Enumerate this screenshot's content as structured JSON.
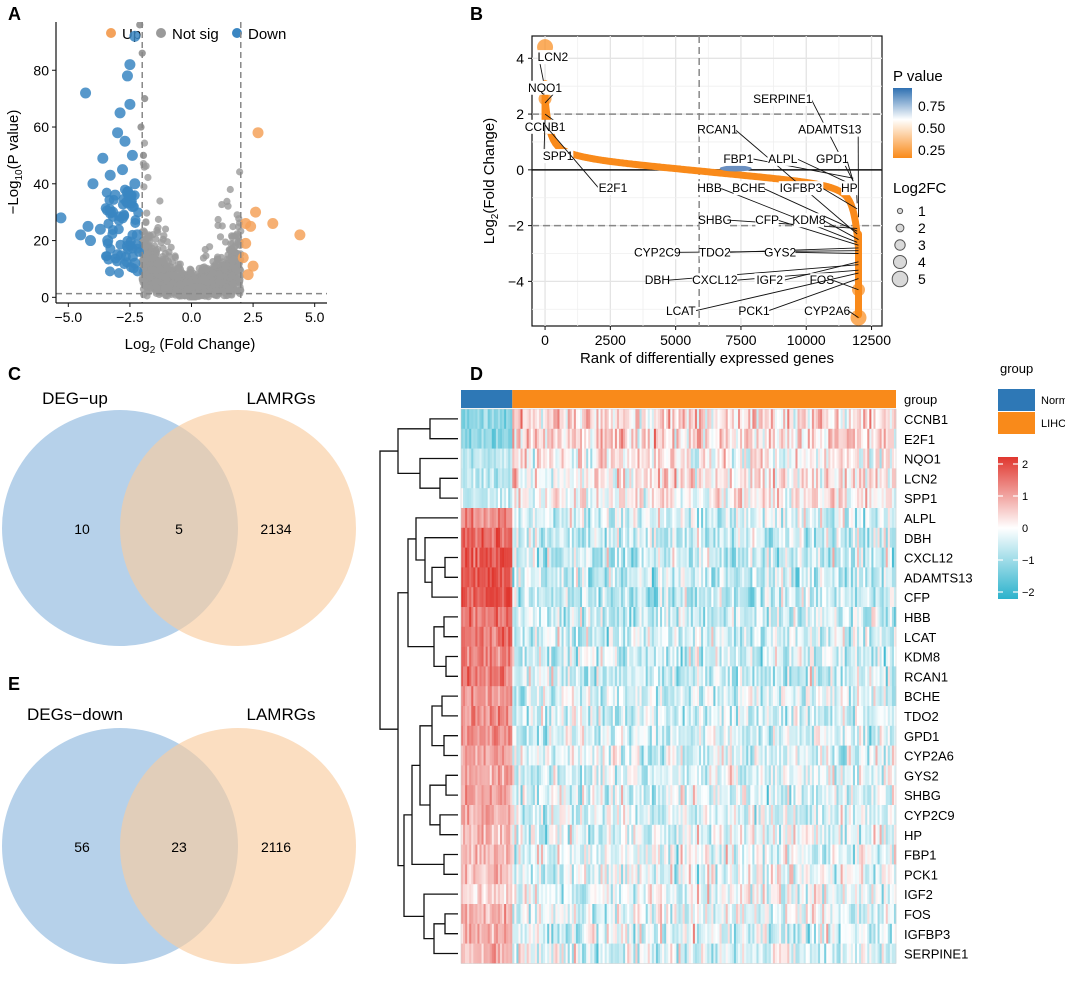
{
  "panels": {
    "A": "A",
    "B": "B",
    "C": "C",
    "D": "D",
    "E": "E"
  },
  "colors": {
    "up": "#f4a25b",
    "notsig": "#9a9a9a",
    "down": "#3a86c2",
    "rank_line": "#f98a1a",
    "venn_left": "#a9c9e6",
    "venn_right": "#f9cc9f",
    "normal": "#2e78b6",
    "lihc": "#f98a1a",
    "heat_high": "#e0372f",
    "heat_mid": "#ffffff",
    "heat_low": "#2bb2cc"
  },
  "chart_data": [
    {
      "panel": "A",
      "type": "scatter",
      "title": "",
      "xlabel": "Log2 (Fold Change)",
      "ylabel": "-Log10 (P value)",
      "xlim": [
        -5.5,
        5.5
      ],
      "ylim": [
        -2,
        97
      ],
      "xticks": [
        "-5.0",
        "-2.5",
        "0.0",
        "2.5",
        "5.0"
      ],
      "yticks": [
        "0",
        "20",
        "40",
        "60",
        "80"
      ],
      "thresholds": {
        "fc": [
          -2,
          2
        ],
        "p": 1.3
      },
      "legend": [
        "Up",
        "Not sig",
        "Down"
      ],
      "series": [
        {
          "name": "Up",
          "points": [
            [
              2.7,
              58
            ],
            [
              4.4,
              22
            ],
            [
              3.3,
              26
            ],
            [
              2.6,
              30
            ],
            [
              2.3,
              8
            ],
            [
              2.5,
              11
            ],
            [
              2.2,
              19
            ],
            [
              2.4,
              25
            ],
            [
              2.1,
              14
            ],
            [
              2.2,
              26
            ]
          ]
        },
        {
          "name": "Down",
          "points": [
            [
              -2.3,
              92
            ],
            [
              -2.5,
              82
            ],
            [
              -2.6,
              78
            ],
            [
              -4.3,
              72
            ],
            [
              -2.9,
              65
            ],
            [
              -2.5,
              68
            ],
            [
              -3.0,
              58
            ],
            [
              -2.7,
              55
            ],
            [
              -2.4,
              50
            ],
            [
              -3.6,
              49
            ],
            [
              -2.8,
              45
            ],
            [
              -2.3,
              40
            ],
            [
              -3.3,
              43
            ],
            [
              -4.0,
              40
            ],
            [
              -2.6,
              37
            ],
            [
              -3.1,
              36
            ],
            [
              -5.3,
              28
            ],
            [
              -4.2,
              25
            ],
            [
              -3.7,
              24
            ],
            [
              -4.5,
              22
            ],
            [
              -3.2,
              30
            ],
            [
              -2.8,
              28
            ],
            [
              -2.4,
              32
            ],
            [
              -3.4,
              20
            ],
            [
              -2.6,
              18
            ],
            [
              -2.2,
              22
            ],
            [
              -3.0,
              15
            ],
            [
              -4.1,
              20
            ],
            [
              -2.3,
              12
            ]
          ]
        }
      ],
      "notsig_cloud": {
        "count": 1200,
        "x_range": [
          -2.0,
          2.0
        ],
        "y_max": 96
      }
    },
    {
      "panel": "B",
      "type": "line",
      "xlabel": "Rank of differentially expressed genes",
      "ylabel": "Log2 (Fold Change)",
      "xlim": [
        -500,
        12900
      ],
      "ylim": [
        -5.6,
        4.8
      ],
      "xticks": [
        0,
        2500,
        5000,
        7500,
        10000,
        12500
      ],
      "yticks": [
        -4,
        -2,
        0,
        2,
        4
      ],
      "hlines": [
        2,
        -2
      ],
      "vline": 5900,
      "colorbar": {
        "title": "P value",
        "ticks": [
          "0.75",
          "0.50",
          "0.25"
        ]
      },
      "size_legend": {
        "title": "Log2FC",
        "items": [
          "1",
          "2",
          "3",
          "4",
          "5"
        ]
      },
      "highlight_points": [
        [
          0,
          4.4
        ],
        [
          0,
          2.9
        ],
        [
          0,
          2.55
        ],
        [
          12000,
          -4.3
        ],
        [
          12000,
          -5.3
        ]
      ],
      "labels": [
        {
          "text": "LCN2",
          "x": 300,
          "y": 3.9,
          "px": 0,
          "py": 2.9
        },
        {
          "text": "NQO1",
          "x": 0,
          "y": 2.8,
          "px": 0,
          "py": 2.4
        },
        {
          "text": "CCNB1",
          "x": 0,
          "y": 1.4,
          "px": 0,
          "py": 2.0
        },
        {
          "text": "SPP1",
          "x": 500,
          "y": 0.35,
          "px": 0,
          "py": 1.8
        },
        {
          "text": "E2F1",
          "x": 2600,
          "y": -0.8,
          "px": 0,
          "py": 1.6
        },
        {
          "text": "SERPINE1",
          "x": 9100,
          "y": 2.4,
          "px": 11900,
          "py": -0.6
        },
        {
          "text": "RCAN1",
          "x": 6600,
          "y": 1.3,
          "px": 11950,
          "py": -2.3
        },
        {
          "text": "ADAMTS13",
          "x": 10900,
          "y": 1.3,
          "px": 12000,
          "py": -1.7
        },
        {
          "text": "FBP1",
          "x": 7400,
          "y": 0.25,
          "px": 11800,
          "py": -0.3
        },
        {
          "text": "ALPL",
          "x": 9100,
          "y": 0.25,
          "px": 11900,
          "py": -0.6
        },
        {
          "text": "GPD1",
          "x": 11000,
          "y": 0.25,
          "px": 11950,
          "py": -0.9
        },
        {
          "text": "HBB",
          "x": 6300,
          "y": -0.8,
          "px": 11950,
          "py": -2.6
        },
        {
          "text": "BCHE",
          "x": 7800,
          "y": -0.8,
          "px": 11950,
          "py": -2.2
        },
        {
          "text": "IGFBP3",
          "x": 9800,
          "y": -0.8,
          "px": 11950,
          "py": -1.4
        },
        {
          "text": "HP",
          "x": 11650,
          "y": -0.8,
          "px": 11950,
          "py": -1.2
        },
        {
          "text": "SHBG",
          "x": 6500,
          "y": -1.95,
          "px": 11950,
          "py": -2.1
        },
        {
          "text": "CFP",
          "x": 8500,
          "y": -1.95,
          "px": 12000,
          "py": -2.7
        },
        {
          "text": "KDM8",
          "x": 10100,
          "y": -1.95,
          "px": 12000,
          "py": -2.5
        },
        {
          "text": "CYP2C9",
          "x": 4300,
          "y": -3.1,
          "px": 12000,
          "py": -2.9
        },
        {
          "text": "TDO2",
          "x": 6500,
          "y": -3.1,
          "px": 12000,
          "py": -2.8
        },
        {
          "text": "GYS2",
          "x": 9000,
          "y": -3.1,
          "px": 12000,
          "py": -3.0
        },
        {
          "text": "DBH",
          "x": 4300,
          "y": -4.1,
          "px": 12000,
          "py": -3.4
        },
        {
          "text": "CXCL12",
          "x": 6500,
          "y": -4.1,
          "px": 12000,
          "py": -3.6
        },
        {
          "text": "IGF2",
          "x": 8600,
          "y": -4.1,
          "px": 12000,
          "py": -3.3
        },
        {
          "text": "FOS",
          "x": 10600,
          "y": -4.1,
          "px": 12000,
          "py": -4.3
        },
        {
          "text": "LCAT",
          "x": 5200,
          "y": -5.2,
          "px": 12000,
          "py": -3.7
        },
        {
          "text": "PCK1",
          "x": 8000,
          "y": -5.2,
          "px": 12000,
          "py": -3.9
        },
        {
          "text": "CYP2A6",
          "x": 10800,
          "y": -5.2,
          "px": 12000,
          "py": -5.3
        }
      ]
    },
    {
      "panel": "C",
      "type": "venn",
      "sets": [
        {
          "label": "DEG−up",
          "only": "10"
        },
        {
          "label": "LAMRGs",
          "only": "2134"
        }
      ],
      "intersection": "5"
    },
    {
      "panel": "E",
      "type": "venn",
      "sets": [
        {
          "label": "DEGs−down",
          "only": "56"
        },
        {
          "label": "LAMRGs",
          "only": "2116"
        }
      ],
      "intersection": "23"
    },
    {
      "panel": "D",
      "type": "heatmap",
      "annotation_label": "group",
      "groups": [
        {
          "name": "Normal",
          "columns": 50
        },
        {
          "name": "LIHC",
          "columns": 374
        }
      ],
      "rows": [
        "CCNB1",
        "E2F1",
        "NQO1",
        "LCN2",
        "SPP1",
        "ALPL",
        "DBH",
        "CXCL12",
        "ADAMTS13",
        "CFP",
        "HBB",
        "LCAT",
        "KDM8",
        "RCAN1",
        "BCHE",
        "TDO2",
        "GPD1",
        "CYP2A6",
        "GYS2",
        "SHBG",
        "CYP2C9",
        "HP",
        "FBP1",
        "PCK1",
        "IGF2",
        "FOS",
        "IGFBP3",
        "SERPINE1"
      ],
      "normal_direction": [
        -1,
        -1,
        -0.5,
        -0.5,
        -0.5,
        1,
        1.5,
        1.5,
        1.5,
        1.5,
        1.2,
        1.2,
        1.2,
        1.2,
        1,
        1,
        1,
        0.8,
        0.8,
        0.8,
        0.8,
        0.6,
        0.6,
        0.6,
        0.4,
        0.7,
        0.7,
        0.7
      ],
      "legend": {
        "title": "group",
        "items": [
          "Normal",
          "LIHC"
        ],
        "scale_ticks": [
          "2",
          "1",
          "0",
          "−1",
          "−2"
        ],
        "range": [
          -2,
          2
        ]
      }
    }
  ]
}
